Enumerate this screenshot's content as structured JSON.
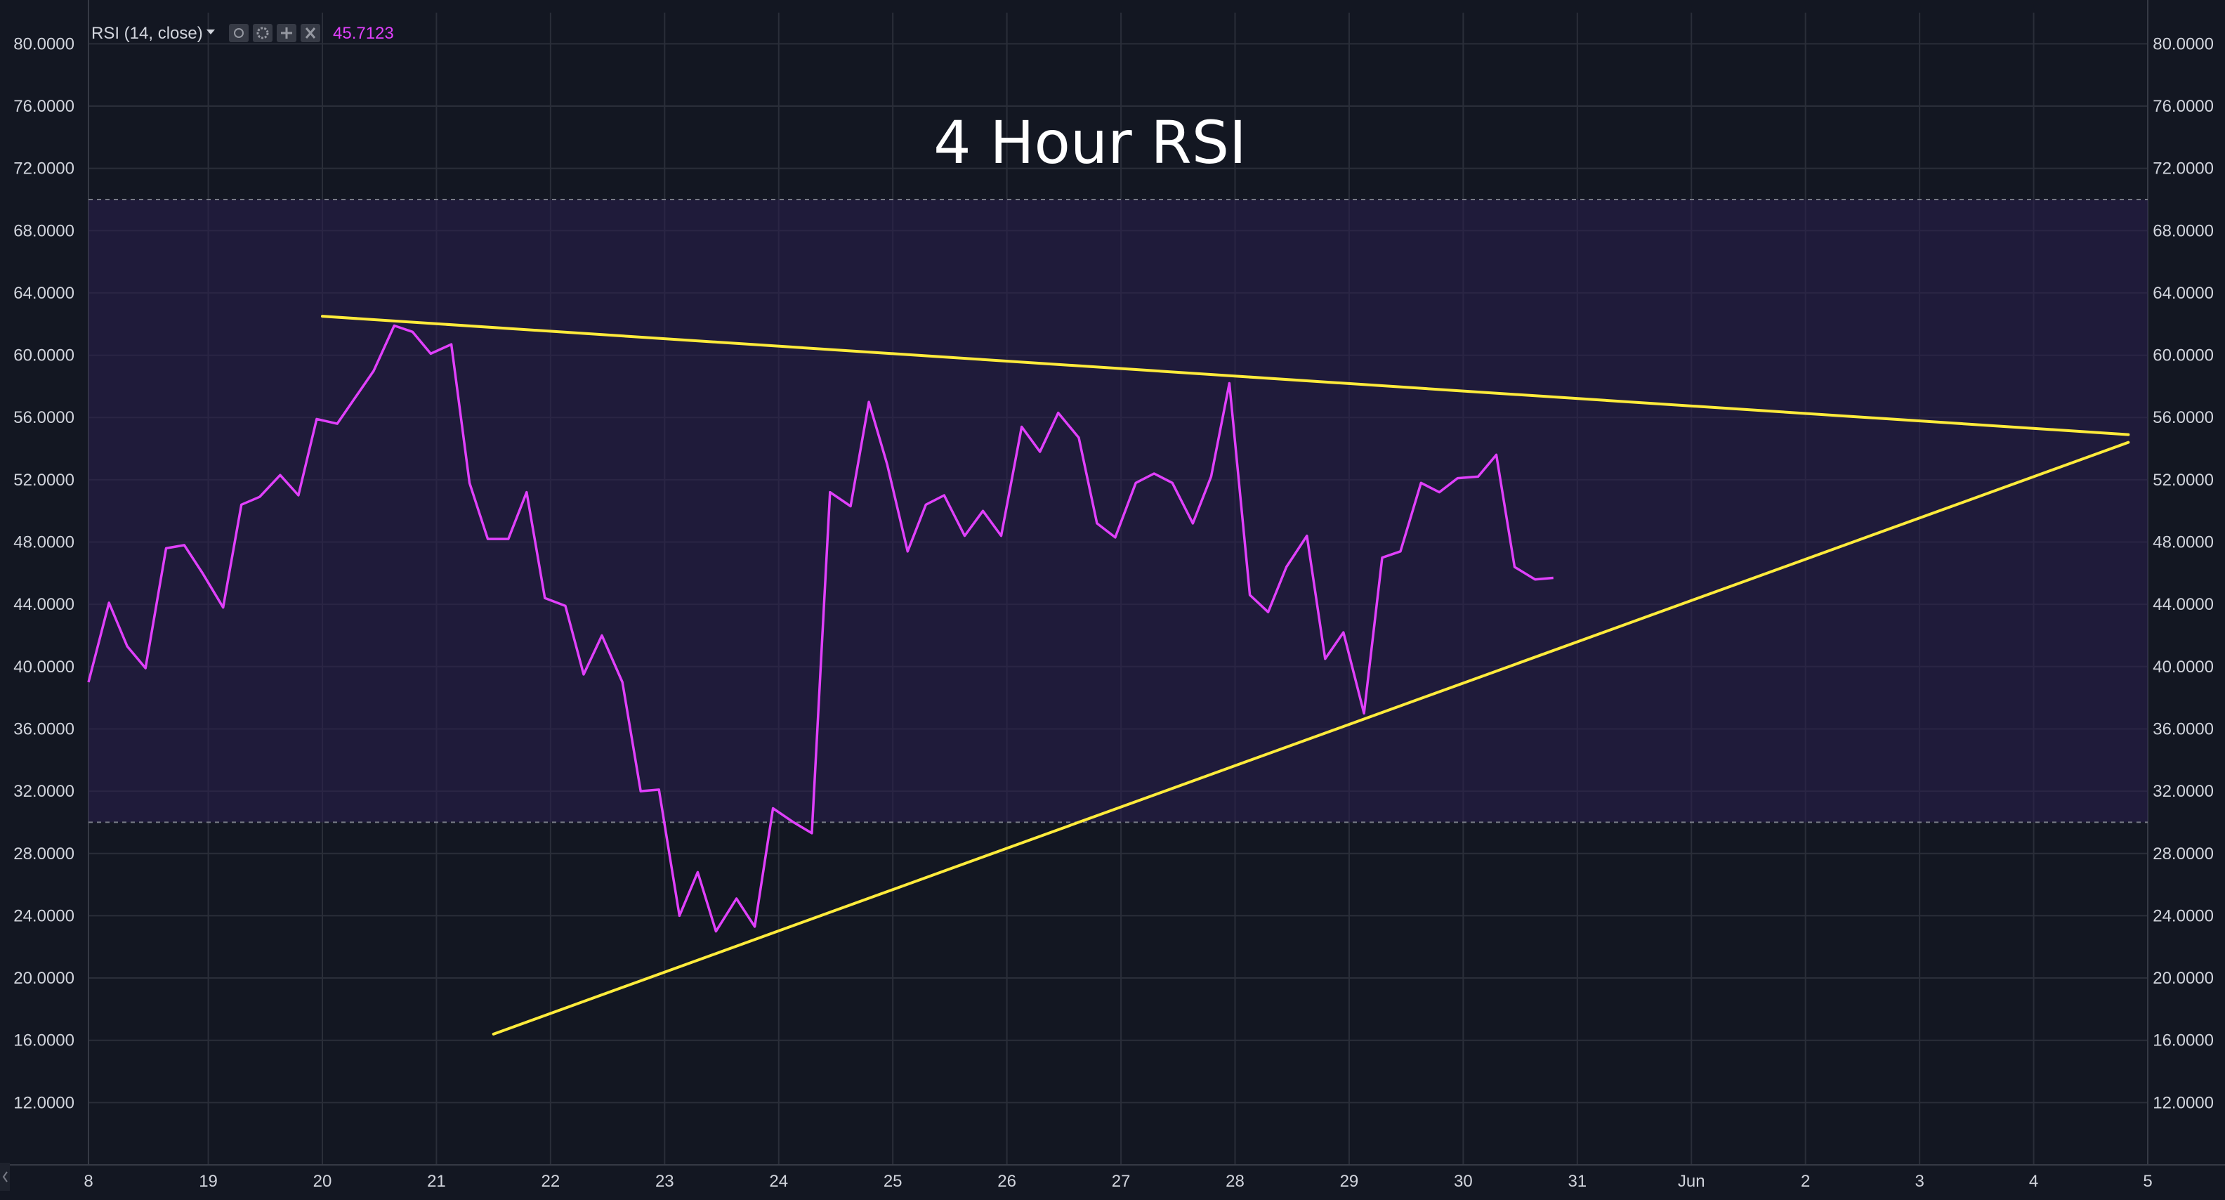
{
  "chart_data": {
    "type": "line",
    "title": "4 Hour RSI",
    "indicator": {
      "label": "RSI (14, close)",
      "current_value": "45.7123"
    },
    "x_labels": [
      "8",
      "19",
      "20",
      "21",
      "22",
      "23",
      "24",
      "25",
      "26",
      "27",
      "28",
      "29",
      "30",
      "31",
      "Jun",
      "2",
      "3",
      "4",
      "5"
    ],
    "x_range": [
      17.95,
      36.0
    ],
    "ylim": [
      8,
      82
    ],
    "y_ticks": [
      12,
      16,
      20,
      24,
      28,
      32,
      36,
      40,
      44,
      48,
      52,
      56,
      60,
      64,
      68,
      72,
      76,
      80
    ],
    "y_tick_labels": [
      "12.0000",
      "16.0000",
      "20.0000",
      "24.0000",
      "28.0000",
      "32.0000",
      "36.0000",
      "40.0000",
      "44.0000",
      "48.0000",
      "52.0000",
      "56.0000",
      "60.0000",
      "64.0000",
      "68.0000",
      "72.0000",
      "76.0000",
      "80.0000"
    ],
    "overbought": 70,
    "oversold": 30,
    "grid": true,
    "series": [
      {
        "color": "#e040fb",
        "x": [
          17.95,
          18.13,
          18.29,
          18.45,
          18.63,
          18.79,
          18.95,
          19.13,
          19.29,
          19.45,
          19.63,
          19.79,
          19.95,
          20.13,
          20.29,
          20.45,
          20.63,
          20.79,
          20.95,
          21.13,
          21.29,
          21.45,
          21.63,
          21.79,
          21.95,
          22.13,
          22.29,
          22.45,
          22.63,
          22.79,
          22.95,
          23.13,
          23.29,
          23.45,
          23.63,
          23.79,
          23.95,
          24.13,
          24.29,
          24.45,
          24.63,
          24.79,
          24.95,
          25.13,
          25.29,
          25.45,
          25.63,
          25.79,
          25.95,
          26.13,
          26.29,
          26.45,
          26.63,
          26.79,
          26.95,
          27.13,
          27.29,
          27.45,
          27.63,
          27.79,
          27.95,
          28.13,
          28.29,
          28.45,
          28.63,
          28.79,
          28.95,
          29.13,
          29.29,
          29.45,
          29.63,
          29.79,
          29.95,
          30.13,
          30.29,
          30.45,
          30.63,
          30.79
        ],
        "y": [
          39.0,
          44.1,
          41.3,
          39.9,
          47.6,
          47.8,
          46.0,
          43.8,
          50.4,
          50.9,
          52.3,
          51.0,
          55.9,
          55.6,
          57.3,
          59.0,
          61.9,
          61.5,
          60.1,
          60.7,
          51.8,
          48.2,
          48.2,
          51.2,
          44.4,
          43.9,
          39.5,
          42.0,
          39.0,
          32.0,
          32.1,
          24.0,
          26.8,
          23.0,
          25.1,
          23.3,
          30.9,
          30.0,
          29.3,
          51.2,
          50.3,
          57.0,
          53.0,
          47.4,
          50.4,
          51.0,
          48.4,
          50.0,
          48.4,
          55.4,
          53.8,
          56.3,
          54.7,
          49.2,
          48.3,
          51.8,
          52.4,
          51.8,
          49.2,
          52.2,
          58.2,
          44.6,
          43.5,
          46.4,
          48.4,
          40.5,
          42.2,
          37.0,
          47.0,
          47.4,
          51.8,
          51.2,
          52.1,
          52.2,
          53.6,
          46.4,
          45.6,
          45.7
        ]
      }
    ],
    "trendlines": [
      {
        "color": "#ffeb3b",
        "x": [
          20.0,
          35.83
        ],
        "y": [
          62.5,
          54.9
        ]
      },
      {
        "color": "#ffeb3b",
        "x": [
          21.5,
          35.83
        ],
        "y": [
          16.4,
          54.4
        ]
      }
    ]
  }
}
